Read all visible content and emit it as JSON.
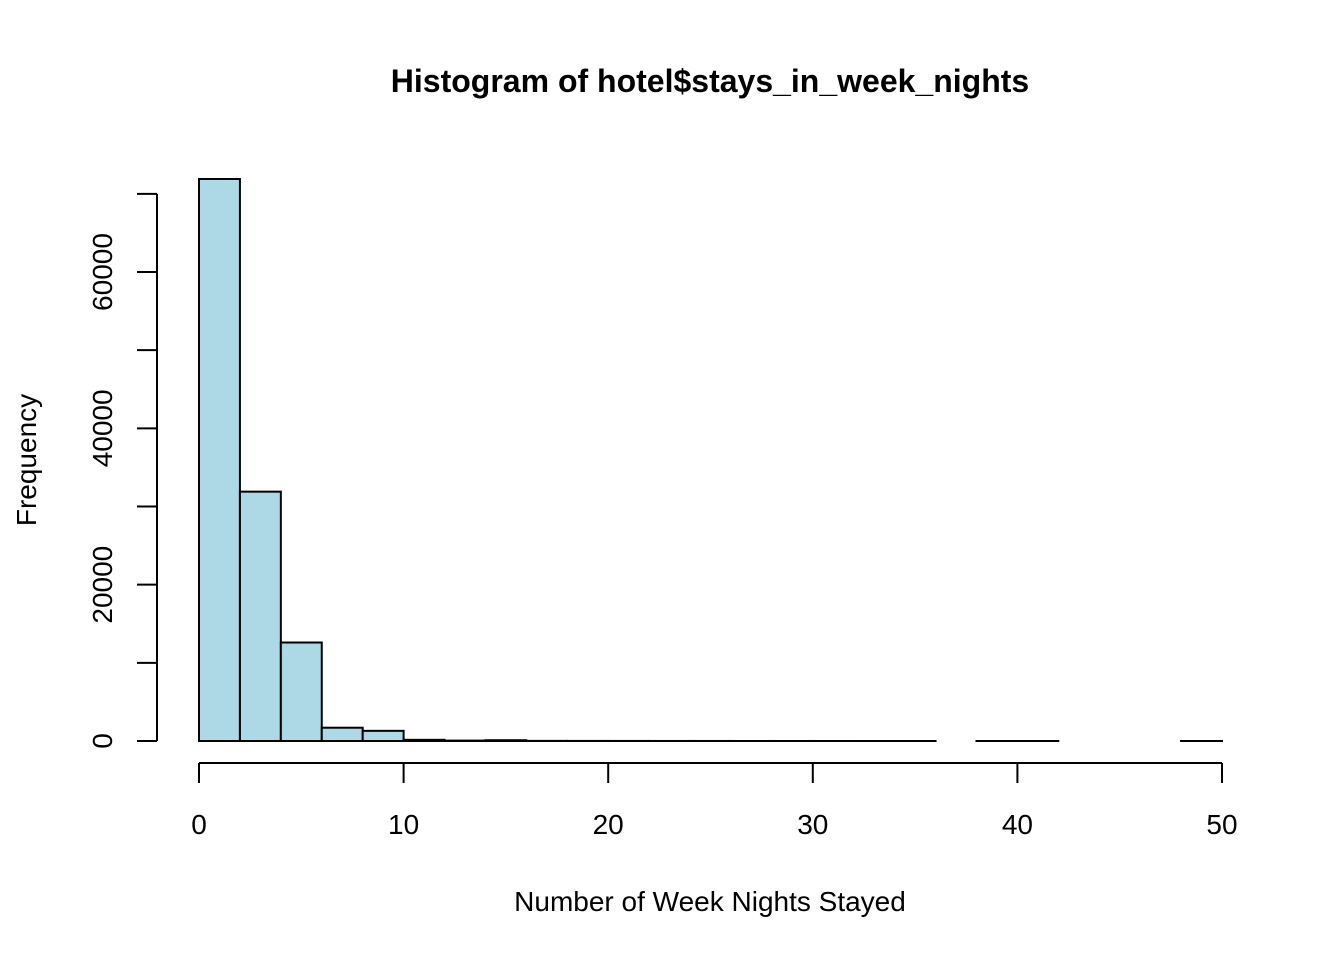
{
  "chart_data": {
    "type": "bar",
    "subtype": "histogram",
    "title": "Histogram of hotel$stays_in_week_nights",
    "xlabel": "Number of Week Nights Stayed",
    "ylabel": "Frequency",
    "bin_width": 2,
    "bins": [
      {
        "x0": 0,
        "x1": 2,
        "count": 71900
      },
      {
        "x0": 2,
        "x1": 4,
        "count": 31900
      },
      {
        "x0": 4,
        "x1": 6,
        "count": 12600
      },
      {
        "x0": 6,
        "x1": 8,
        "count": 1700
      },
      {
        "x0": 8,
        "x1": 10,
        "count": 1300
      },
      {
        "x0": 10,
        "x1": 12,
        "count": 150
      },
      {
        "x0": 12,
        "x1": 14,
        "count": 50
      },
      {
        "x0": 14,
        "x1": 16,
        "count": 100
      },
      {
        "x0": 16,
        "x1": 18,
        "count": 15
      },
      {
        "x0": 18,
        "x1": 20,
        "count": 10
      },
      {
        "x0": 20,
        "x1": 22,
        "count": 8
      },
      {
        "x0": 22,
        "x1": 24,
        "count": 5
      },
      {
        "x0": 24,
        "x1": 26,
        "count": 5
      },
      {
        "x0": 26,
        "x1": 28,
        "count": 2
      },
      {
        "x0": 28,
        "x1": 30,
        "count": 2
      },
      {
        "x0": 30,
        "x1": 32,
        "count": 2
      },
      {
        "x0": 32,
        "x1": 34,
        "count": 1
      },
      {
        "x0": 34,
        "x1": 36,
        "count": 1
      },
      {
        "x0": 36,
        "x1": 38,
        "count": 0
      },
      {
        "x0": 38,
        "x1": 40,
        "count": 1
      },
      {
        "x0": 40,
        "x1": 42,
        "count": 1
      },
      {
        "x0": 42,
        "x1": 44,
        "count": 0
      },
      {
        "x0": 44,
        "x1": 46,
        "count": 0
      },
      {
        "x0": 46,
        "x1": 48,
        "count": 0
      },
      {
        "x0": 48,
        "x1": 50,
        "count": 1
      }
    ],
    "xlim": [
      0,
      50
    ],
    "ylim": [
      0,
      71900
    ],
    "x_ticks": [
      0,
      10,
      20,
      30,
      40,
      50
    ],
    "y_ticks": [
      0,
      10000,
      20000,
      30000,
      40000,
      50000,
      60000,
      70000
    ],
    "y_tick_labels": [
      {
        "value": 0,
        "label": "0"
      },
      {
        "value": 20000,
        "label": "20000"
      },
      {
        "value": 40000,
        "label": "40000"
      },
      {
        "value": 60000,
        "label": "60000"
      }
    ],
    "bar_color": "#ADD8E6",
    "border_color": "#000000",
    "grid": false,
    "legend": "none"
  }
}
